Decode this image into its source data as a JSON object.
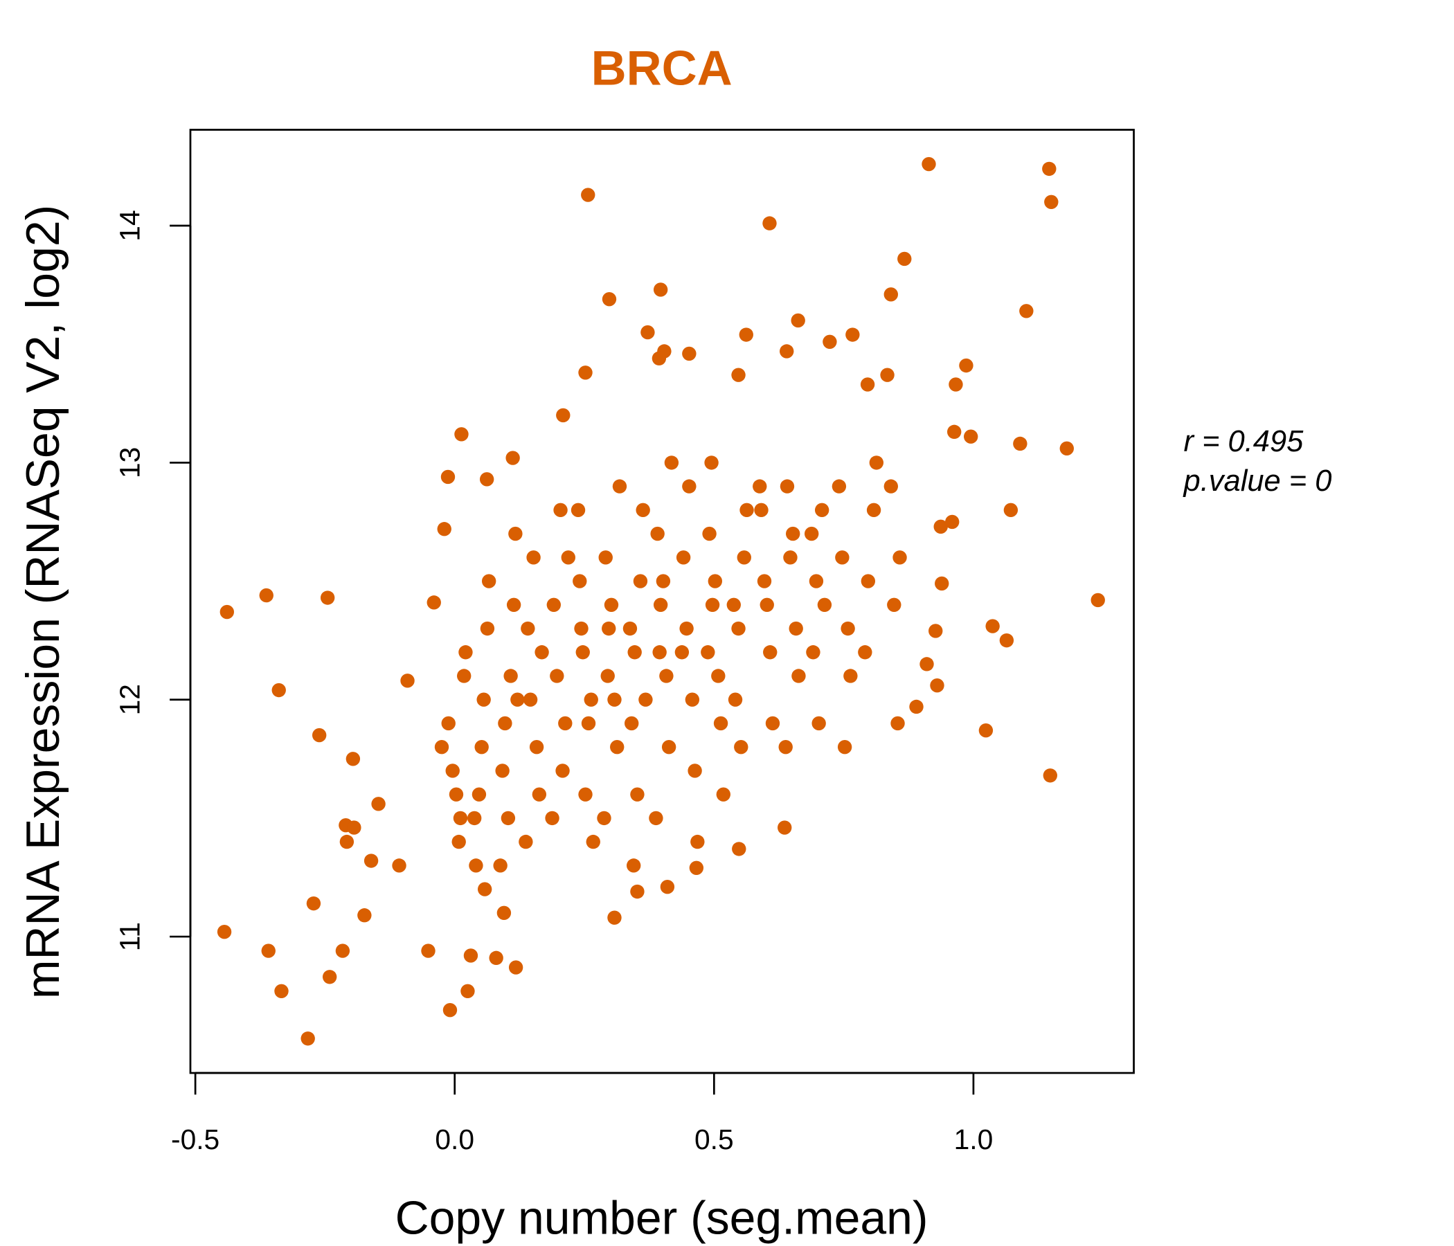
{
  "chart_data": {
    "type": "scatter",
    "title": "BRCA",
    "xlabel": "Copy number (seg.mean)",
    "ylabel": "mRNA Expression (RNASeq V2, log2)",
    "xlim": [
      -0.51,
      1.31
    ],
    "ylim": [
      10.43,
      14.41
    ],
    "xticks": [
      -0.5,
      0.0,
      0.5,
      1.0
    ],
    "xtick_labels": [
      "-0.5",
      "0.0",
      "0.5",
      "1.0"
    ],
    "yticks": [
      11,
      12,
      13,
      14
    ],
    "ytick_labels": [
      "11",
      "12",
      "13",
      "14"
    ],
    "grid": false,
    "annotations": [
      "r = 0.495",
      "p.value = 0"
    ],
    "point_color": "#D95F02",
    "title_color": "#D95F02",
    "points": [
      [
        -0.439,
        12.37
      ],
      [
        -0.363,
        12.44
      ],
      [
        -0.245,
        12.43
      ],
      [
        -0.339,
        12.04
      ],
      [
        -0.261,
        11.85
      ],
      [
        -0.196,
        11.75
      ],
      [
        -0.444,
        11.02
      ],
      [
        -0.359,
        10.94
      ],
      [
        -0.334,
        10.77
      ],
      [
        -0.283,
        10.57
      ],
      [
        -0.241,
        10.83
      ],
      [
        -0.216,
        10.94
      ],
      [
        -0.272,
        11.14
      ],
      [
        -0.174,
        11.09
      ],
      [
        -0.21,
        11.47
      ],
      [
        -0.194,
        11.46
      ],
      [
        -0.208,
        11.4
      ],
      [
        -0.161,
        11.32
      ],
      [
        -0.147,
        11.56
      ],
      [
        -0.107,
        11.3
      ],
      [
        -0.091,
        12.08
      ],
      [
        0.257,
        14.13
      ],
      [
        0.607,
        14.01
      ],
      [
        0.914,
        14.26
      ],
      [
        1.146,
        14.24
      ],
      [
        1.15,
        14.1
      ],
      [
        0.867,
        13.86
      ],
      [
        0.841,
        13.71
      ],
      [
        1.102,
        13.64
      ],
      [
        0.397,
        13.73
      ],
      [
        0.298,
        13.69
      ],
      [
        0.372,
        13.55
      ],
      [
        0.562,
        13.54
      ],
      [
        0.662,
        13.6
      ],
      [
        0.723,
        13.51
      ],
      [
        0.767,
        13.54
      ],
      [
        0.64,
        13.47
      ],
      [
        0.404,
        13.47
      ],
      [
        0.452,
        13.46
      ],
      [
        0.394,
        13.44
      ],
      [
        0.252,
        13.38
      ],
      [
        0.547,
        13.37
      ],
      [
        0.986,
        13.41
      ],
      [
        0.966,
        13.33
      ],
      [
        0.834,
        13.37
      ],
      [
        0.796,
        13.33
      ],
      [
        1.18,
        13.06
      ],
      [
        1.09,
        13.08
      ],
      [
        0.995,
        13.11
      ],
      [
        0.963,
        13.13
      ],
      [
        1.072,
        12.8
      ],
      [
        1.24,
        12.42
      ],
      [
        1.037,
        12.31
      ],
      [
        1.064,
        12.25
      ],
      [
        1.024,
        11.87
      ],
      [
        1.148,
        11.68
      ],
      [
        0.959,
        12.75
      ],
      [
        0.937,
        12.73
      ],
      [
        0.939,
        12.49
      ],
      [
        0.927,
        12.29
      ],
      [
        0.93,
        12.06
      ],
      [
        0.89,
        11.97
      ],
      [
        0.91,
        12.15
      ],
      [
        0.854,
        11.9
      ],
      [
        0.013,
        13.12
      ],
      [
        -0.013,
        12.94
      ],
      [
        -0.02,
        12.72
      ],
      [
        0.209,
        13.2
      ],
      [
        0.112,
        13.02
      ],
      [
        0.062,
        12.93
      ],
      [
        -0.009,
        10.69
      ],
      [
        0.025,
        10.77
      ],
      [
        0.031,
        10.92
      ],
      [
        0.08,
        10.91
      ],
      [
        0.118,
        10.87
      ],
      [
        -0.051,
        10.94
      ],
      [
        0.308,
        11.08
      ],
      [
        0.352,
        11.19
      ],
      [
        0.41,
        11.21
      ],
      [
        0.466,
        11.29
      ],
      [
        0.548,
        11.37
      ],
      [
        0.636,
        11.46
      ],
      [
        -0.04,
        12.41
      ],
      [
        0.003,
        11.6
      ],
      [
        -0.012,
        11.9
      ],
      [
        0.018,
        12.1
      ],
      [
        0.008,
        11.4
      ],
      [
        -0.025,
        11.8
      ],
      [
        0.021,
        12.2
      ],
      [
        0.011,
        11.5
      ],
      [
        -0.004,
        11.7
      ],
      [
        0.047,
        11.6
      ],
      [
        0.056,
        12.0
      ],
      [
        0.041,
        11.3
      ],
      [
        0.063,
        12.3
      ],
      [
        0.052,
        11.8
      ],
      [
        0.038,
        11.5
      ],
      [
        0.058,
        11.2
      ],
      [
        0.066,
        12.5
      ],
      [
        0.097,
        11.9
      ],
      [
        0.108,
        12.1
      ],
      [
        0.092,
        11.7
      ],
      [
        0.114,
        12.4
      ],
      [
        0.103,
        11.5
      ],
      [
        0.121,
        12.0
      ],
      [
        0.088,
        11.3
      ],
      [
        0.117,
        12.7
      ],
      [
        0.095,
        11.1
      ],
      [
        0.146,
        12.0
      ],
      [
        0.158,
        11.8
      ],
      [
        0.141,
        12.3
      ],
      [
        0.163,
        11.6
      ],
      [
        0.152,
        12.6
      ],
      [
        0.137,
        11.4
      ],
      [
        0.168,
        12.2
      ],
      [
        0.197,
        12.1
      ],
      [
        0.208,
        11.7
      ],
      [
        0.191,
        12.4
      ],
      [
        0.213,
        11.9
      ],
      [
        0.204,
        12.8
      ],
      [
        0.188,
        11.5
      ],
      [
        0.219,
        12.6
      ],
      [
        0.247,
        12.2
      ],
      [
        0.258,
        11.9
      ],
      [
        0.241,
        12.5
      ],
      [
        0.263,
        12.0
      ],
      [
        0.252,
        11.6
      ],
      [
        0.238,
        12.8
      ],
      [
        0.267,
        11.4
      ],
      [
        0.244,
        12.3
      ],
      [
        0.297,
        12.3
      ],
      [
        0.308,
        12.0
      ],
      [
        0.291,
        12.6
      ],
      [
        0.313,
        11.8
      ],
      [
        0.302,
        12.4
      ],
      [
        0.288,
        11.5
      ],
      [
        0.318,
        12.9
      ],
      [
        0.295,
        12.1
      ],
      [
        0.347,
        12.2
      ],
      [
        0.358,
        12.5
      ],
      [
        0.341,
        11.9
      ],
      [
        0.363,
        12.8
      ],
      [
        0.352,
        11.6
      ],
      [
        0.338,
        12.3
      ],
      [
        0.368,
        12.0
      ],
      [
        0.345,
        11.3
      ],
      [
        0.397,
        12.4
      ],
      [
        0.408,
        12.1
      ],
      [
        0.391,
        12.7
      ],
      [
        0.413,
        11.8
      ],
      [
        0.402,
        12.5
      ],
      [
        0.388,
        11.5
      ],
      [
        0.418,
        13.0
      ],
      [
        0.395,
        12.2
      ],
      [
        0.447,
        12.3
      ],
      [
        0.458,
        12.0
      ],
      [
        0.441,
        12.6
      ],
      [
        0.463,
        11.7
      ],
      [
        0.452,
        12.9
      ],
      [
        0.438,
        12.2
      ],
      [
        0.468,
        11.4
      ],
      [
        0.497,
        12.4
      ],
      [
        0.508,
        12.1
      ],
      [
        0.491,
        12.7
      ],
      [
        0.513,
        11.9
      ],
      [
        0.502,
        12.5
      ],
      [
        0.488,
        12.2
      ],
      [
        0.518,
        11.6
      ],
      [
        0.495,
        13.0
      ],
      [
        0.547,
        12.3
      ],
      [
        0.558,
        12.6
      ],
      [
        0.541,
        12.0
      ],
      [
        0.563,
        12.8
      ],
      [
        0.552,
        11.8
      ],
      [
        0.538,
        12.4
      ],
      [
        0.597,
        12.5
      ],
      [
        0.608,
        12.2
      ],
      [
        0.591,
        12.8
      ],
      [
        0.613,
        11.9
      ],
      [
        0.602,
        12.4
      ],
      [
        0.588,
        12.9
      ],
      [
        0.647,
        12.6
      ],
      [
        0.658,
        12.3
      ],
      [
        0.641,
        12.9
      ],
      [
        0.663,
        12.1
      ],
      [
        0.652,
        12.7
      ],
      [
        0.638,
        11.8
      ],
      [
        0.697,
        12.5
      ],
      [
        0.708,
        12.8
      ],
      [
        0.691,
        12.2
      ],
      [
        0.713,
        12.4
      ],
      [
        0.702,
        11.9
      ],
      [
        0.688,
        12.7
      ],
      [
        0.747,
        12.6
      ],
      [
        0.758,
        12.3
      ],
      [
        0.741,
        12.9
      ],
      [
        0.763,
        12.1
      ],
      [
        0.752,
        11.8
      ],
      [
        0.797,
        12.5
      ],
      [
        0.808,
        12.8
      ],
      [
        0.791,
        12.2
      ],
      [
        0.813,
        13.0
      ],
      [
        0.847,
        12.4
      ],
      [
        0.858,
        12.6
      ],
      [
        0.841,
        12.9
      ]
    ]
  }
}
